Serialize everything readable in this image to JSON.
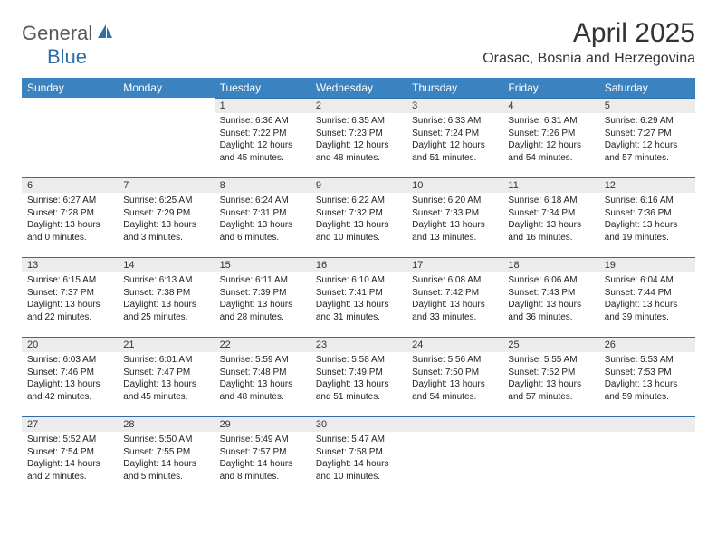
{
  "logo": {
    "text_main": "General",
    "text_blue": "Blue"
  },
  "title": "April 2025",
  "location": "Orasac, Bosnia and Herzegovina",
  "day_headers": [
    "Sunday",
    "Monday",
    "Tuesday",
    "Wednesday",
    "Thursday",
    "Friday",
    "Saturday"
  ],
  "colors": {
    "header_bg": "#3b83c0",
    "header_fg": "#ffffff",
    "band_bg": "#ececec",
    "band_border": "#2f6fa8",
    "text": "#222222"
  },
  "weeks": [
    [
      null,
      null,
      {
        "n": "1",
        "sr": "Sunrise: 6:36 AM",
        "ss": "Sunset: 7:22 PM",
        "dl": "Daylight: 12 hours and 45 minutes."
      },
      {
        "n": "2",
        "sr": "Sunrise: 6:35 AM",
        "ss": "Sunset: 7:23 PM",
        "dl": "Daylight: 12 hours and 48 minutes."
      },
      {
        "n": "3",
        "sr": "Sunrise: 6:33 AM",
        "ss": "Sunset: 7:24 PM",
        "dl": "Daylight: 12 hours and 51 minutes."
      },
      {
        "n": "4",
        "sr": "Sunrise: 6:31 AM",
        "ss": "Sunset: 7:26 PM",
        "dl": "Daylight: 12 hours and 54 minutes."
      },
      {
        "n": "5",
        "sr": "Sunrise: 6:29 AM",
        "ss": "Sunset: 7:27 PM",
        "dl": "Daylight: 12 hours and 57 minutes."
      }
    ],
    [
      {
        "n": "6",
        "sr": "Sunrise: 6:27 AM",
        "ss": "Sunset: 7:28 PM",
        "dl": "Daylight: 13 hours and 0 minutes."
      },
      {
        "n": "7",
        "sr": "Sunrise: 6:25 AM",
        "ss": "Sunset: 7:29 PM",
        "dl": "Daylight: 13 hours and 3 minutes."
      },
      {
        "n": "8",
        "sr": "Sunrise: 6:24 AM",
        "ss": "Sunset: 7:31 PM",
        "dl": "Daylight: 13 hours and 6 minutes."
      },
      {
        "n": "9",
        "sr": "Sunrise: 6:22 AM",
        "ss": "Sunset: 7:32 PM",
        "dl": "Daylight: 13 hours and 10 minutes."
      },
      {
        "n": "10",
        "sr": "Sunrise: 6:20 AM",
        "ss": "Sunset: 7:33 PM",
        "dl": "Daylight: 13 hours and 13 minutes."
      },
      {
        "n": "11",
        "sr": "Sunrise: 6:18 AM",
        "ss": "Sunset: 7:34 PM",
        "dl": "Daylight: 13 hours and 16 minutes."
      },
      {
        "n": "12",
        "sr": "Sunrise: 6:16 AM",
        "ss": "Sunset: 7:36 PM",
        "dl": "Daylight: 13 hours and 19 minutes."
      }
    ],
    [
      {
        "n": "13",
        "sr": "Sunrise: 6:15 AM",
        "ss": "Sunset: 7:37 PM",
        "dl": "Daylight: 13 hours and 22 minutes."
      },
      {
        "n": "14",
        "sr": "Sunrise: 6:13 AM",
        "ss": "Sunset: 7:38 PM",
        "dl": "Daylight: 13 hours and 25 minutes."
      },
      {
        "n": "15",
        "sr": "Sunrise: 6:11 AM",
        "ss": "Sunset: 7:39 PM",
        "dl": "Daylight: 13 hours and 28 minutes."
      },
      {
        "n": "16",
        "sr": "Sunrise: 6:10 AM",
        "ss": "Sunset: 7:41 PM",
        "dl": "Daylight: 13 hours and 31 minutes."
      },
      {
        "n": "17",
        "sr": "Sunrise: 6:08 AM",
        "ss": "Sunset: 7:42 PM",
        "dl": "Daylight: 13 hours and 33 minutes."
      },
      {
        "n": "18",
        "sr": "Sunrise: 6:06 AM",
        "ss": "Sunset: 7:43 PM",
        "dl": "Daylight: 13 hours and 36 minutes."
      },
      {
        "n": "19",
        "sr": "Sunrise: 6:04 AM",
        "ss": "Sunset: 7:44 PM",
        "dl": "Daylight: 13 hours and 39 minutes."
      }
    ],
    [
      {
        "n": "20",
        "sr": "Sunrise: 6:03 AM",
        "ss": "Sunset: 7:46 PM",
        "dl": "Daylight: 13 hours and 42 minutes."
      },
      {
        "n": "21",
        "sr": "Sunrise: 6:01 AM",
        "ss": "Sunset: 7:47 PM",
        "dl": "Daylight: 13 hours and 45 minutes."
      },
      {
        "n": "22",
        "sr": "Sunrise: 5:59 AM",
        "ss": "Sunset: 7:48 PM",
        "dl": "Daylight: 13 hours and 48 minutes."
      },
      {
        "n": "23",
        "sr": "Sunrise: 5:58 AM",
        "ss": "Sunset: 7:49 PM",
        "dl": "Daylight: 13 hours and 51 minutes."
      },
      {
        "n": "24",
        "sr": "Sunrise: 5:56 AM",
        "ss": "Sunset: 7:50 PM",
        "dl": "Daylight: 13 hours and 54 minutes."
      },
      {
        "n": "25",
        "sr": "Sunrise: 5:55 AM",
        "ss": "Sunset: 7:52 PM",
        "dl": "Daylight: 13 hours and 57 minutes."
      },
      {
        "n": "26",
        "sr": "Sunrise: 5:53 AM",
        "ss": "Sunset: 7:53 PM",
        "dl": "Daylight: 13 hours and 59 minutes."
      }
    ],
    [
      {
        "n": "27",
        "sr": "Sunrise: 5:52 AM",
        "ss": "Sunset: 7:54 PM",
        "dl": "Daylight: 14 hours and 2 minutes."
      },
      {
        "n": "28",
        "sr": "Sunrise: 5:50 AM",
        "ss": "Sunset: 7:55 PM",
        "dl": "Daylight: 14 hours and 5 minutes."
      },
      {
        "n": "29",
        "sr": "Sunrise: 5:49 AM",
        "ss": "Sunset: 7:57 PM",
        "dl": "Daylight: 14 hours and 8 minutes."
      },
      {
        "n": "30",
        "sr": "Sunrise: 5:47 AM",
        "ss": "Sunset: 7:58 PM",
        "dl": "Daylight: 14 hours and 10 minutes."
      },
      null,
      null,
      null
    ]
  ]
}
